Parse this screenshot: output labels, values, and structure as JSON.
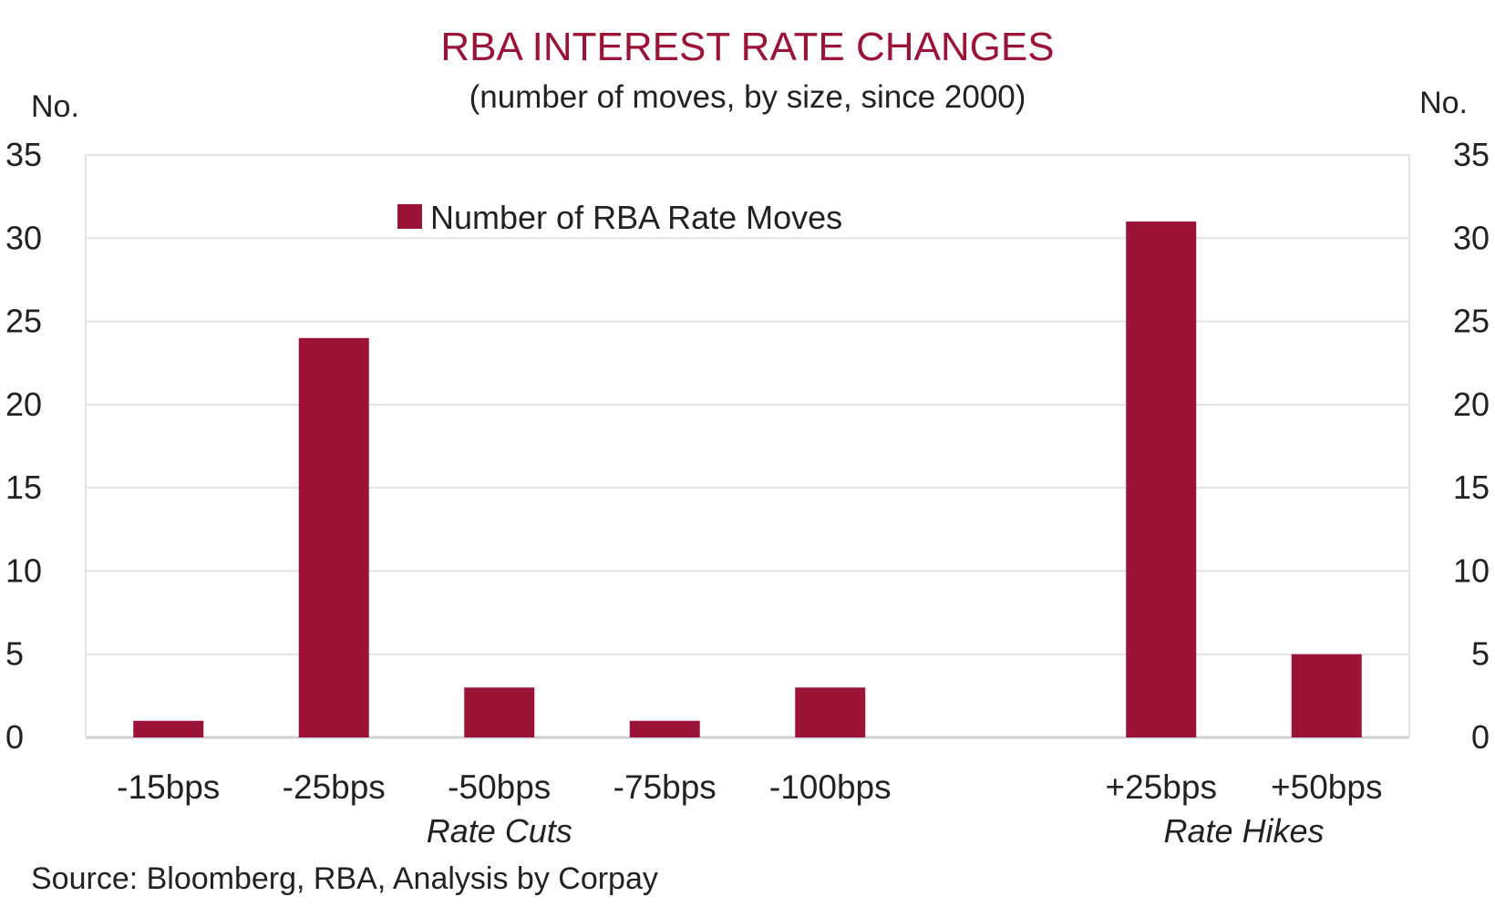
{
  "chart_data": {
    "type": "bar",
    "title": "RBA INTEREST RATE CHANGES",
    "subtitle": "(number of moves, by size, since 2000)",
    "ylabel_left": "No.",
    "ylabel_right": "No.",
    "categories": [
      "-15bps",
      "-25bps",
      "-50bps",
      "-75bps",
      "-100bps",
      "",
      "+25bps",
      "+50bps"
    ],
    "series": [
      {
        "name": "Number of RBA Rate Moves",
        "values": [
          1,
          24,
          3,
          1,
          3,
          null,
          31,
          5
        ]
      }
    ],
    "groups": [
      {
        "label": "Rate Cuts",
        "from": 0,
        "to": 4
      },
      {
        "label": "Rate Hikes",
        "from": 6,
        "to": 7
      }
    ],
    "ylim": [
      0,
      35
    ],
    "yticks": [
      0,
      5,
      10,
      15,
      20,
      25,
      30,
      35
    ],
    "grid": true,
    "legend_position": "top-center",
    "source": "Source: Bloomberg, RBA, Analysis by Corpay",
    "colors": {
      "bar": "#9b1438",
      "title": "#9b1438",
      "grid": "#e3e3e3",
      "axis": "#d0d0d0",
      "text": "#222222"
    }
  }
}
